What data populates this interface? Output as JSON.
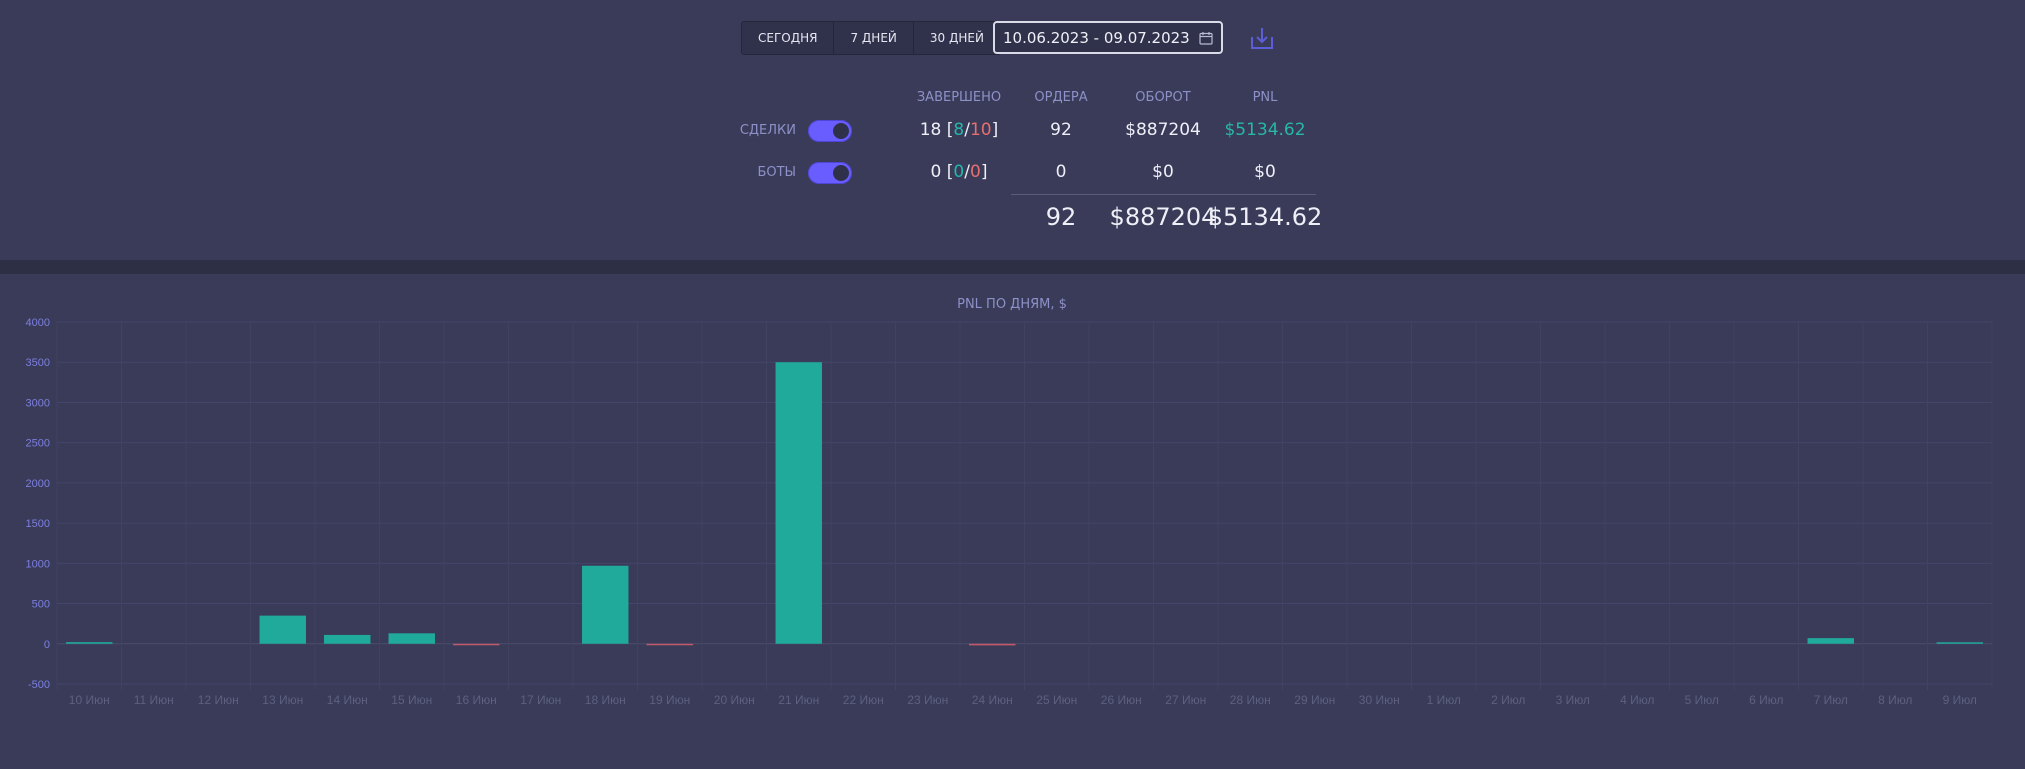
{
  "controls": {
    "periods": [
      "СЕГОДНЯ",
      "7 ДНЕЙ",
      "30 ДНЕЙ"
    ],
    "date_range": "10.06.2023 - 09.07.2023"
  },
  "stats": {
    "headers": {
      "completed": "ЗАВЕРШЕНО",
      "orders": "ОРДЕРА",
      "turnover": "ОБОРОТ",
      "pnl": "PNL"
    },
    "deals": {
      "label": "СДЕЛКИ",
      "enabled": true,
      "completed_total": "18",
      "completed_win": "8",
      "completed_loss": "10",
      "orders": "92",
      "turnover": "$887204",
      "pnl": "$5134.62"
    },
    "bots": {
      "label": "БОТЫ",
      "enabled": true,
      "completed_total": "0",
      "completed_win": "0",
      "completed_loss": "0",
      "orders": "0",
      "turnover": "$0",
      "pnl": "$0"
    },
    "totals": {
      "orders": "92",
      "turnover": "$887204",
      "pnl": "$5134.62"
    }
  },
  "chart_data": {
    "type": "bar",
    "title": "PNL ПО ДНЯМ, $",
    "categories": [
      "10 Июн",
      "11 Июн",
      "12 Июн",
      "13 Июн",
      "14 Июн",
      "15 Июн",
      "16 Июн",
      "17 Июн",
      "18 Июн",
      "19 Июн",
      "20 Июн",
      "21 Июн",
      "22 Июн",
      "23 Июн",
      "24 Июн",
      "25 Июн",
      "26 Июн",
      "27 Июн",
      "28 Июн",
      "29 Июн",
      "30 Июн",
      "1 Июл",
      "2 Июл",
      "3 Июл",
      "4 Июл",
      "5 Июл",
      "6 Июл",
      "7 Июл",
      "8 Июл",
      "9 Июл"
    ],
    "values": [
      20,
      0,
      0,
      350,
      110,
      130,
      -15,
      0,
      970,
      -15,
      0,
      3500,
      0,
      0,
      -20,
      0,
      0,
      0,
      0,
      0,
      0,
      0,
      0,
      0,
      0,
      0,
      0,
      70,
      0,
      5
    ],
    "ylim": [
      -500,
      4000
    ],
    "yticks": [
      4000,
      3500,
      3000,
      2500,
      2000,
      1500,
      1000,
      500,
      0,
      -500
    ],
    "grid": true,
    "colors": {
      "positive": "#1faa9c",
      "negative": "#c0596a"
    }
  }
}
